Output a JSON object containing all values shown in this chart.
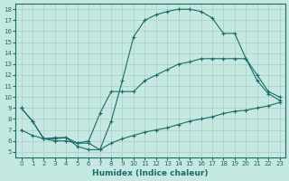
{
  "xlabel": "Humidex (Indice chaleur)",
  "bg_color": "#c5e8e0",
  "grid_color": "#a8d0c8",
  "line_color": "#1a6b6b",
  "xlim": [
    -0.5,
    23.5
  ],
  "ylim": [
    4.5,
    18.5
  ],
  "xticks": [
    0,
    1,
    2,
    3,
    4,
    5,
    6,
    7,
    8,
    9,
    10,
    11,
    12,
    13,
    14,
    15,
    16,
    17,
    18,
    19,
    20,
    21,
    22,
    23
  ],
  "yticks": [
    5,
    6,
    7,
    8,
    9,
    10,
    11,
    12,
    13,
    14,
    15,
    16,
    17,
    18
  ],
  "curve_top_x": [
    0,
    1,
    2,
    3,
    4,
    5,
    6,
    7,
    8,
    9,
    10,
    11,
    12,
    13,
    14,
    15,
    16,
    17,
    18,
    19,
    20,
    21,
    22,
    23
  ],
  "curve_top_y": [
    9.0,
    7.8,
    6.2,
    6.3,
    6.3,
    5.5,
    5.2,
    5.2,
    7.8,
    11.5,
    15.5,
    17.0,
    17.5,
    17.8,
    18.0,
    18.0,
    17.8,
    17.2,
    15.8,
    15.8,
    13.5,
    11.5,
    10.3,
    9.7
  ],
  "curve_mid_x": [
    0,
    1,
    2,
    3,
    4,
    5,
    6,
    7,
    8,
    9,
    10,
    11,
    12,
    13,
    14,
    15,
    16,
    17,
    18,
    19,
    20,
    21,
    22,
    23
  ],
  "curve_mid_y": [
    9.0,
    7.8,
    6.2,
    6.2,
    6.3,
    5.8,
    6.0,
    8.5,
    10.5,
    10.5,
    10.5,
    11.5,
    12.0,
    12.5,
    13.0,
    13.2,
    13.5,
    13.5,
    13.5,
    13.5,
    13.5,
    12.0,
    10.5,
    10.0
  ],
  "curve_bot_x": [
    0,
    1,
    2,
    3,
    4,
    5,
    6,
    7,
    8,
    9,
    10,
    11,
    12,
    13,
    14,
    15,
    16,
    17,
    18,
    19,
    20,
    21,
    22,
    23
  ],
  "curve_bot_y": [
    7.0,
    6.5,
    6.2,
    6.0,
    6.0,
    5.8,
    5.8,
    5.2,
    5.8,
    6.2,
    6.5,
    6.8,
    7.0,
    7.2,
    7.5,
    7.8,
    8.0,
    8.2,
    8.5,
    8.7,
    8.8,
    9.0,
    9.2,
    9.5
  ]
}
